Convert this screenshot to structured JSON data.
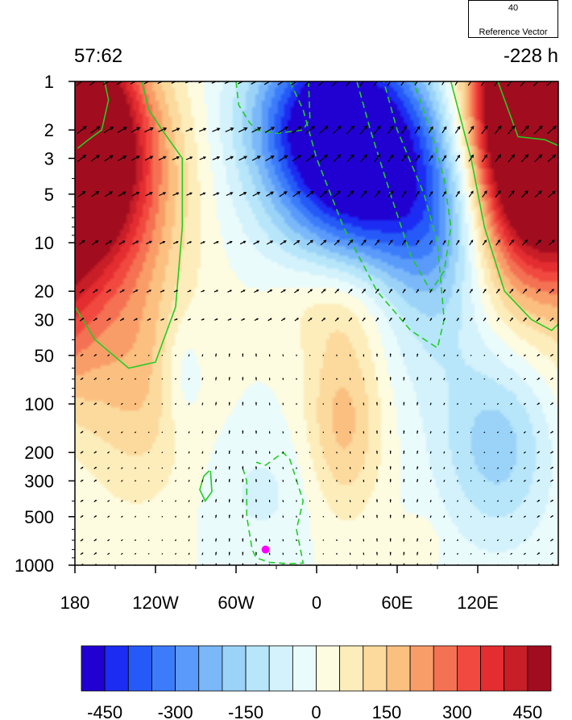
{
  "header": {
    "left_title": "57:62",
    "right_title": "-228 h"
  },
  "reference_vector": {
    "magnitude": "40",
    "label": "Reference Vector"
  },
  "chart_data": {
    "type": "heatmap",
    "title": "",
    "xlabel": "",
    "ylabel": "",
    "x_ticks": [
      "180",
      "120W",
      "60W",
      "0",
      "60E",
      "120E"
    ],
    "x_tick_values": [
      -180,
      -120,
      -60,
      0,
      60,
      120
    ],
    "xlim": [
      -180,
      180
    ],
    "y_ticks": [
      "1",
      "2",
      "3",
      "5",
      "10",
      "20",
      "30",
      "50",
      "100",
      "200",
      "300",
      "500",
      "1000"
    ],
    "y_tick_values": [
      1,
      2,
      3,
      5,
      10,
      20,
      30,
      50,
      100,
      200,
      300,
      500,
      1000
    ],
    "ylim": [
      1000,
      1
    ],
    "y_scale": "log",
    "colorbar": {
      "labels": [
        "-450",
        "-300",
        "-150",
        "0",
        "150",
        "300",
        "450"
      ],
      "label_values": [
        -450,
        -300,
        -150,
        0,
        150,
        300,
        450
      ],
      "levels": [
        -500,
        -450,
        -400,
        -350,
        -300,
        -250,
        -200,
        -150,
        -100,
        -50,
        0,
        50,
        100,
        150,
        200,
        250,
        300,
        350,
        400,
        450,
        500
      ],
      "colors": [
        "#2100d2",
        "#1c2cf2",
        "#2559f8",
        "#3c7cfb",
        "#5a9afb",
        "#7ab8f9",
        "#9bd3f8",
        "#b7e6fa",
        "#d3f2fb",
        "#eafbfc",
        "#fefce0",
        "#fdedbb",
        "#fcd99c",
        "#fbbf80",
        "#f99d68",
        "#f57153",
        "#f1493f",
        "#e42d30",
        "#c81e27",
        "#a10c1f"
      ]
    },
    "contour_color": "#22cc22",
    "vector_color": "#000000",
    "marker": {
      "lon": -38,
      "pressure": 800,
      "color": "#ff00ff"
    }
  }
}
